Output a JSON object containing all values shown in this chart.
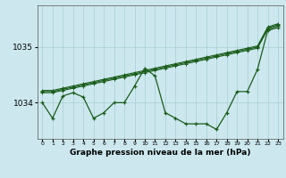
{
  "title": "Graphe pression niveau de la mer (hPa)",
  "bg_color": "#cce8ee",
  "line_color": "#1a5c1a",
  "grid_color": "#a8cdd4",
  "x_ticks": [
    0,
    1,
    2,
    3,
    4,
    5,
    6,
    7,
    8,
    9,
    10,
    11,
    12,
    13,
    14,
    15,
    16,
    17,
    18,
    19,
    20,
    21,
    22,
    23
  ],
  "ylim": [
    1033.35,
    1035.75
  ],
  "yticks": [
    1034,
    1035
  ],
  "series": {
    "line_jagged": [
      1034.0,
      1033.72,
      1034.12,
      1034.18,
      1034.1,
      1033.72,
      1033.82,
      1034.0,
      1034.0,
      1034.3,
      1034.62,
      1034.48,
      1033.82,
      1033.72,
      1033.62,
      1033.62,
      1033.62,
      1033.52,
      1033.82,
      1034.2,
      1034.2,
      1034.6,
      1035.3,
      1035.35
    ],
    "line_smooth1": [
      1034.18,
      1034.18,
      1034.22,
      1034.26,
      1034.3,
      1034.34,
      1034.38,
      1034.42,
      1034.46,
      1034.5,
      1034.54,
      1034.58,
      1034.62,
      1034.66,
      1034.7,
      1034.74,
      1034.78,
      1034.82,
      1034.86,
      1034.9,
      1034.94,
      1034.98,
      1035.32,
      1035.38
    ],
    "line_smooth2": [
      1034.2,
      1034.2,
      1034.24,
      1034.28,
      1034.32,
      1034.36,
      1034.4,
      1034.44,
      1034.48,
      1034.52,
      1034.56,
      1034.6,
      1034.64,
      1034.68,
      1034.72,
      1034.76,
      1034.8,
      1034.84,
      1034.88,
      1034.92,
      1034.96,
      1035.0,
      1035.34,
      1035.4
    ],
    "line_smooth3": [
      1034.22,
      1034.22,
      1034.26,
      1034.3,
      1034.34,
      1034.38,
      1034.42,
      1034.46,
      1034.5,
      1034.54,
      1034.58,
      1034.62,
      1034.66,
      1034.7,
      1034.74,
      1034.78,
      1034.82,
      1034.86,
      1034.9,
      1034.94,
      1034.98,
      1035.02,
      1035.36,
      1035.42
    ]
  }
}
